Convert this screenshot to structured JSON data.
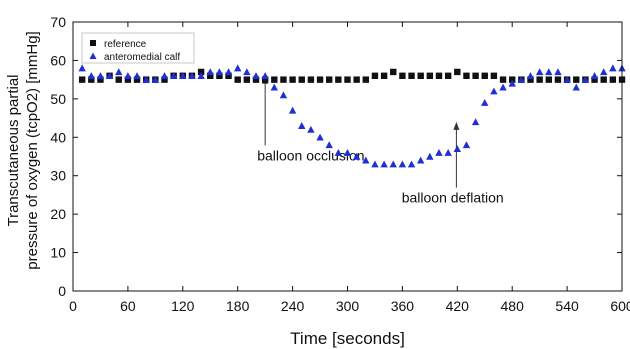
{
  "chart_data": {
    "type": "scatter",
    "title": "",
    "xlabel": "Time [seconds]",
    "ylabel_lines": [
      "Transcutaneous partial",
      "pressure of oxygen (tcpO2) [mmHg]"
    ],
    "xlim": [
      0,
      600
    ],
    "ylim": [
      0,
      70
    ],
    "xticks": [
      0,
      60,
      120,
      180,
      240,
      300,
      360,
      420,
      480,
      540,
      600
    ],
    "yticks": [
      0,
      10,
      20,
      30,
      40,
      50,
      60,
      70
    ],
    "grid": false,
    "legend_position": "top-left",
    "series": [
      {
        "name": "reference",
        "marker": "square",
        "color": "#111111",
        "x": [
          10,
          20,
          30,
          40,
          50,
          60,
          70,
          80,
          90,
          100,
          110,
          120,
          130,
          140,
          150,
          160,
          170,
          180,
          190,
          200,
          210,
          220,
          230,
          240,
          250,
          260,
          270,
          280,
          290,
          300,
          310,
          320,
          330,
          340,
          350,
          360,
          370,
          380,
          390,
          400,
          410,
          420,
          430,
          440,
          450,
          460,
          470,
          480,
          490,
          500,
          510,
          520,
          530,
          540,
          550,
          560,
          570,
          580,
          590,
          600
        ],
        "y": [
          55,
          55,
          55,
          56,
          55,
          55,
          55,
          55,
          55,
          55,
          56,
          56,
          56,
          57,
          56,
          56,
          56,
          55,
          55,
          55,
          55,
          55,
          55,
          55,
          55,
          55,
          55,
          55,
          55,
          55,
          55,
          55,
          56,
          56,
          57,
          56,
          56,
          56,
          56,
          56,
          56,
          57,
          56,
          56,
          56,
          56,
          55,
          55,
          55,
          55,
          55,
          55,
          55,
          55,
          55,
          55,
          55,
          55,
          55,
          55
        ]
      },
      {
        "name": "anteromedial calf",
        "marker": "triangle",
        "color": "#1f2fd6",
        "x": [
          10,
          20,
          30,
          40,
          50,
          60,
          70,
          80,
          90,
          100,
          110,
          120,
          130,
          140,
          150,
          160,
          170,
          180,
          190,
          200,
          210,
          220,
          230,
          240,
          250,
          260,
          270,
          280,
          290,
          300,
          310,
          320,
          330,
          340,
          350,
          360,
          370,
          380,
          390,
          400,
          410,
          420,
          430,
          440,
          450,
          460,
          470,
          480,
          490,
          500,
          510,
          520,
          530,
          540,
          550,
          560,
          570,
          580,
          590,
          600
        ],
        "y": [
          58,
          56,
          56,
          56,
          57,
          56,
          56,
          55,
          55,
          56,
          56,
          56,
          56,
          56,
          57,
          57,
          57,
          58,
          57,
          56,
          56,
          53,
          51,
          47,
          43,
          42,
          40,
          38,
          36,
          36,
          35,
          34,
          33,
          33,
          33,
          33,
          33,
          34,
          35,
          36,
          36,
          37,
          38,
          44,
          49,
          52,
          53,
          54,
          55,
          56,
          57,
          57,
          57,
          55,
          53,
          55,
          56,
          57,
          58,
          58
        ]
      }
    ],
    "annotations": [
      {
        "text": "balloon occlusion",
        "x": 210,
        "y": 56,
        "label_x": 260,
        "label_y": 34
      },
      {
        "text": "balloon deflation",
        "x": 419,
        "y": 44,
        "label_x": 415,
        "label_y": 23
      }
    ]
  }
}
